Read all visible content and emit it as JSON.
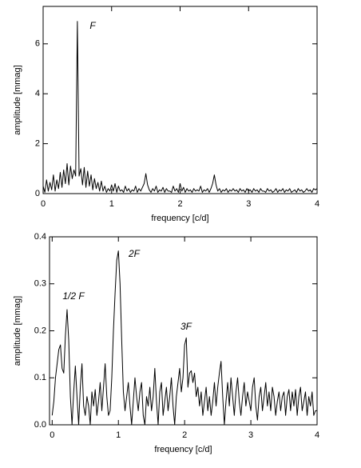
{
  "chart_data": [
    {
      "type": "line",
      "xlabel": "frequency [c/d]",
      "ylabel": "amplitude [mmag]",
      "annotations": [
        "F"
      ],
      "xlim": [
        0,
        4
      ],
      "ylim": [
        0,
        7.5
      ],
      "xticks": [
        0,
        1,
        2,
        3,
        4
      ],
      "yticks": [
        0,
        2,
        4,
        6
      ],
      "color": "#000000",
      "x": [
        0,
        0.025,
        0.05,
        0.075,
        0.1,
        0.125,
        0.15,
        0.175,
        0.2,
        0.225,
        0.25,
        0.275,
        0.3,
        0.325,
        0.35,
        0.375,
        0.4,
        0.425,
        0.45,
        0.475,
        0.5,
        0.525,
        0.55,
        0.575,
        0.6,
        0.625,
        0.65,
        0.675,
        0.7,
        0.725,
        0.75,
        0.775,
        0.8,
        0.825,
        0.85,
        0.875,
        0.9,
        0.925,
        0.95,
        0.975,
        1,
        1.025,
        1.05,
        1.075,
        1.1,
        1.125,
        1.15,
        1.175,
        1.2,
        1.225,
        1.25,
        1.275,
        1.3,
        1.325,
        1.35,
        1.375,
        1.4,
        1.425,
        1.45,
        1.475,
        1.5,
        1.525,
        1.55,
        1.575,
        1.6,
        1.625,
        1.65,
        1.675,
        1.7,
        1.725,
        1.75,
        1.775,
        1.8,
        1.825,
        1.85,
        1.875,
        1.9,
        1.925,
        1.95,
        1.975,
        2,
        2.025,
        2.05,
        2.075,
        2.1,
        2.125,
        2.15,
        2.175,
        2.2,
        2.225,
        2.25,
        2.275,
        2.3,
        2.325,
        2.35,
        2.375,
        2.4,
        2.425,
        2.45,
        2.475,
        2.5,
        2.525,
        2.55,
        2.575,
        2.6,
        2.625,
        2.65,
        2.675,
        2.7,
        2.725,
        2.75,
        2.775,
        2.8,
        2.825,
        2.85,
        2.875,
        2.9,
        2.925,
        2.95,
        2.975,
        3,
        3.025,
        3.05,
        3.075,
        3.1,
        3.125,
        3.15,
        3.175,
        3.2,
        3.225,
        3.25,
        3.275,
        3.3,
        3.325,
        3.35,
        3.375,
        3.4,
        3.425,
        3.45,
        3.475,
        3.5,
        3.525,
        3.55,
        3.575,
        3.6,
        3.625,
        3.65,
        3.675,
        3.7,
        3.725,
        3.75,
        3.775,
        3.8,
        3.825,
        3.85,
        3.875,
        3.9,
        3.925,
        3.95,
        3.975,
        4
      ],
      "values": [
        0.3,
        0.05,
        0.55,
        0.1,
        0.45,
        0.15,
        0.75,
        0.1,
        0.55,
        0.2,
        0.85,
        0.25,
        0.95,
        0.4,
        1.2,
        0.35,
        1.1,
        0.6,
        0.95,
        0.7,
        6.9,
        0.7,
        1.0,
        0.35,
        1.05,
        0.25,
        0.9,
        0.3,
        0.75,
        0.15,
        0.6,
        0.2,
        0.45,
        0.1,
        0.5,
        0.1,
        0.3,
        0.05,
        0.2,
        0.1,
        0.35,
        0.1,
        0.4,
        0.05,
        0.3,
        0.1,
        0.15,
        0.05,
        0.3,
        0.1,
        0.2,
        0.05,
        0.15,
        0.1,
        0.3,
        0.05,
        0.2,
        0.1,
        0.25,
        0.4,
        0.8,
        0.35,
        0.15,
        0.05,
        0.2,
        0.1,
        0.3,
        0.05,
        0.15,
        0.1,
        0.25,
        0.05,
        0.2,
        0.1,
        0.1,
        0.05,
        0.3,
        0.1,
        0.2,
        0.05,
        0.4,
        0.1,
        0.25,
        0.05,
        0.2,
        0.1,
        0.15,
        0.05,
        0.2,
        0.1,
        0.15,
        0.1,
        0.3,
        0.05,
        0.15,
        0.1,
        0.2,
        0.05,
        0.2,
        0.4,
        0.75,
        0.35,
        0.1,
        0.2,
        0.05,
        0.15,
        0.1,
        0.2,
        0.05,
        0.15,
        0.1,
        0.2,
        0.1,
        0.15,
        0.05,
        0.2,
        0.1,
        0.15,
        0.05,
        0.2,
        0.1,
        0.15,
        0.05,
        0.2,
        0.1,
        0.15,
        0.05,
        0.2,
        0.1,
        0.1,
        0.05,
        0.2,
        0.1,
        0.15,
        0.05,
        0.1,
        0.2,
        0.05,
        0.15,
        0.1,
        0.2,
        0.05,
        0.15,
        0.1,
        0.2,
        0.05,
        0.1,
        0.15,
        0.05,
        0.2,
        0.1,
        0.15,
        0.05,
        0.1,
        0.2,
        0.1,
        0.15,
        0.05,
        0.2,
        0.15,
        0.2
      ]
    },
    {
      "type": "line",
      "xlabel": "frequency [c/d]",
      "ylabel": "amplitude [mmag]",
      "annotations": [
        "1/2 F",
        "2F",
        "3F"
      ],
      "xlim": [
        -0.04,
        4
      ],
      "ylim": [
        0,
        0.4
      ],
      "xticks": [
        0,
        1,
        2,
        3,
        4
      ],
      "yticks": [
        {
          "value": 0,
          "label": "0.0"
        },
        0.1,
        0.2,
        0.3,
        0.4
      ],
      "color": "#000000",
      "x": [
        0,
        0.025,
        0.05,
        0.075,
        0.1,
        0.125,
        0.15,
        0.175,
        0.2,
        0.225,
        0.25,
        0.275,
        0.3,
        0.325,
        0.35,
        0.375,
        0.4,
        0.425,
        0.45,
        0.475,
        0.5,
        0.525,
        0.55,
        0.575,
        0.6,
        0.625,
        0.65,
        0.675,
        0.7,
        0.725,
        0.75,
        0.775,
        0.8,
        0.825,
        0.85,
        0.875,
        0.9,
        0.925,
        0.95,
        0.975,
        1,
        1.025,
        1.05,
        1.075,
        1.1,
        1.125,
        1.15,
        1.175,
        1.2,
        1.225,
        1.25,
        1.275,
        1.3,
        1.325,
        1.35,
        1.375,
        1.4,
        1.425,
        1.45,
        1.475,
        1.5,
        1.525,
        1.55,
        1.575,
        1.6,
        1.625,
        1.65,
        1.675,
        1.7,
        1.725,
        1.75,
        1.775,
        1.8,
        1.825,
        1.85,
        1.875,
        1.9,
        1.925,
        1.95,
        1.975,
        2,
        2.025,
        2.05,
        2.075,
        2.1,
        2.125,
        2.15,
        2.175,
        2.2,
        2.225,
        2.25,
        2.275,
        2.3,
        2.325,
        2.35,
        2.375,
        2.4,
        2.425,
        2.45,
        2.475,
        2.5,
        2.525,
        2.55,
        2.575,
        2.6,
        2.625,
        2.65,
        2.675,
        2.7,
        2.725,
        2.75,
        2.775,
        2.8,
        2.825,
        2.85,
        2.875,
        2.9,
        2.925,
        2.95,
        2.975,
        3,
        3.025,
        3.05,
        3.075,
        3.1,
        3.125,
        3.15,
        3.175,
        3.2,
        3.225,
        3.25,
        3.275,
        3.3,
        3.325,
        3.35,
        3.375,
        3.4,
        3.425,
        3.45,
        3.475,
        3.5,
        3.525,
        3.55,
        3.575,
        3.6,
        3.625,
        3.65,
        3.675,
        3.7,
        3.725,
        3.75,
        3.775,
        3.8,
        3.825,
        3.85,
        3.875,
        3.9,
        3.925,
        3.95,
        3.975,
        4
      ],
      "values": [
        0.02,
        0.05,
        0.1,
        0.13,
        0.16,
        0.17,
        0.12,
        0.11,
        0.19,
        0.245,
        0.18,
        0.06,
        0.0,
        0.07,
        0.125,
        0.06,
        0.0,
        0.08,
        0.13,
        0.04,
        0.02,
        0.06,
        0.04,
        0.0,
        0.07,
        0.04,
        0.075,
        0.02,
        0.05,
        0.09,
        0.03,
        0.08,
        0.13,
        0.06,
        0.02,
        0.03,
        0.1,
        0.2,
        0.28,
        0.35,
        0.37,
        0.3,
        0.18,
        0.07,
        0.03,
        0.06,
        0.09,
        0.04,
        0.0,
        0.05,
        0.1,
        0.06,
        0.03,
        0.07,
        0.09,
        0.02,
        0.0,
        0.06,
        0.04,
        0.08,
        0.03,
        0.06,
        0.12,
        0.05,
        0.0,
        0.07,
        0.09,
        0.02,
        0.05,
        0.08,
        0.03,
        0.06,
        0.1,
        0.04,
        0.0,
        0.06,
        0.09,
        0.12,
        0.07,
        0.1,
        0.17,
        0.185,
        0.08,
        0.11,
        0.115,
        0.09,
        0.11,
        0.06,
        0.08,
        0.04,
        0.07,
        0.02,
        0.05,
        0.08,
        0.03,
        0.06,
        0.02,
        0.05,
        0.09,
        0.04,
        0.08,
        0.11,
        0.135,
        0.06,
        0.0,
        0.05,
        0.09,
        0.04,
        0.1,
        0.06,
        0.02,
        0.07,
        0.1,
        0.05,
        0.02,
        0.06,
        0.09,
        0.04,
        0.07,
        0.05,
        0.03,
        0.08,
        0.1,
        0.04,
        0.01,
        0.06,
        0.08,
        0.03,
        0.06,
        0.09,
        0.04,
        0.07,
        0.03,
        0.08,
        0.06,
        0.02,
        0.05,
        0.07,
        0.03,
        0.06,
        0.07,
        0.02,
        0.06,
        0.075,
        0.03,
        0.07,
        0.04,
        0.075,
        0.02,
        0.06,
        0.08,
        0.03,
        0.05,
        0.07,
        0.02,
        0.06,
        0.04,
        0.07,
        0.02,
        0.03,
        0.03
      ]
    }
  ]
}
